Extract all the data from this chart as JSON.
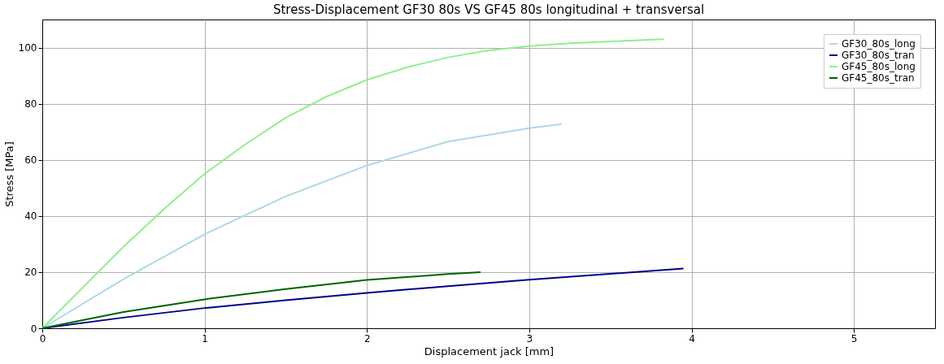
{
  "chart_data": {
    "type": "line",
    "title": "Stress-Displacement GF30 80s VS GF45 80s longitudinal + transversal",
    "xlabel": "Displacement jack [mm]",
    "ylabel": "Stress [MPa]",
    "xlim": [
      0,
      5.5
    ],
    "xticks": [
      0,
      1,
      2,
      3,
      4,
      5
    ],
    "ylim": [
      0,
      110
    ],
    "yticks": [
      0,
      20,
      40,
      60,
      80,
      100
    ],
    "grid": true,
    "legend": "top right",
    "marker": "none",
    "line_style": "solid",
    "series": [
      {
        "name": "GF30_80s_long",
        "color": "#add8e6",
        "x": [
          0,
          0.5,
          1,
          1.5,
          2,
          2.5,
          3,
          3.2
        ],
        "values": [
          0,
          17.5,
          33.5,
          47,
          58,
          66.5,
          71.3,
          72.7
        ]
      },
      {
        "name": "GF30_80s_tran",
        "color": "#00008b",
        "x": [
          0,
          0.5,
          1,
          1.5,
          2,
          2.5,
          3,
          3.5,
          3.95
        ],
        "values": [
          0,
          3.8,
          7.2,
          10,
          12.6,
          15,
          17.3,
          19.4,
          21.3
        ]
      },
      {
        "name": "GF45_80s_long",
        "color": "#90ee90",
        "x": [
          0,
          0.25,
          0.5,
          0.75,
          1,
          1.25,
          1.5,
          1.75,
          2,
          2.25,
          2.5,
          2.75,
          3,
          3.25,
          3.5,
          3.83
        ],
        "values": [
          0,
          14.5,
          29,
          42.5,
          55,
          65.5,
          75,
          82.5,
          88.5,
          93,
          96.5,
          99,
          100.5,
          101.5,
          102.2,
          103
        ]
      },
      {
        "name": "GF45_80s_tran",
        "color": "#006400",
        "x": [
          0,
          0.5,
          1,
          1.5,
          2,
          2.5,
          2.7
        ],
        "values": [
          0,
          5.8,
          10.3,
          14,
          17.2,
          19.3,
          20
        ]
      }
    ]
  }
}
